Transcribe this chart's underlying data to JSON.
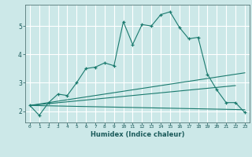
{
  "title": "",
  "xlabel": "Humidex (Indice chaleur)",
  "ylabel": "",
  "bg_color": "#cce8e8",
  "grid_color": "#ffffff",
  "line_color": "#1a7a6e",
  "xlim": [
    -0.5,
    23.5
  ],
  "ylim": [
    1.6,
    5.75
  ],
  "xticks": [
    0,
    1,
    2,
    3,
    4,
    5,
    6,
    7,
    8,
    9,
    10,
    11,
    12,
    13,
    14,
    15,
    16,
    17,
    18,
    19,
    20,
    21,
    22,
    23
  ],
  "yticks": [
    2,
    3,
    4,
    5
  ],
  "series1_x": [
    0,
    1,
    2,
    3,
    4,
    5,
    6,
    7,
    8,
    9,
    10,
    11,
    12,
    13,
    14,
    15,
    16,
    17,
    18,
    19,
    20,
    21,
    22,
    23
  ],
  "series1_y": [
    2.2,
    1.85,
    2.3,
    2.6,
    2.55,
    3.0,
    3.5,
    3.55,
    3.7,
    3.6,
    5.15,
    4.35,
    5.05,
    5.0,
    5.4,
    5.5,
    4.95,
    4.55,
    4.6,
    3.3,
    2.75,
    2.3,
    2.3,
    1.95
  ],
  "series2_x": [
    0,
    23
  ],
  "series2_y": [
    2.2,
    3.35
  ],
  "series3_x": [
    0,
    22
  ],
  "series3_y": [
    2.2,
    2.9
  ],
  "series4_x": [
    0,
    23
  ],
  "series4_y": [
    2.2,
    2.05
  ],
  "figsize": [
    3.2,
    2.0
  ],
  "dpi": 100
}
